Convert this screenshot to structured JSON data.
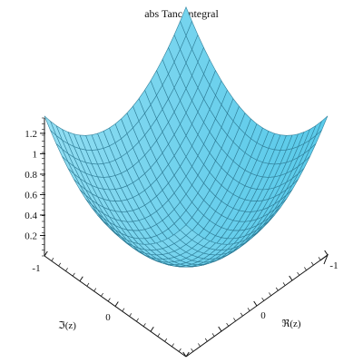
{
  "chart_data": {
    "type": "surface",
    "title": "abs Tanc integral",
    "x": {
      "label": "ℜ(z)",
      "range": [
        -1,
        1
      ],
      "ticks": [
        -1,
        0
      ]
    },
    "y": {
      "label": "ℑ(z)",
      "range": [
        -1,
        1
      ],
      "ticks": [
        -1,
        0
      ]
    },
    "z": {
      "ticks": [
        0.2,
        0.4,
        0.6,
        0.8,
        1,
        1.2
      ],
      "range": [
        0,
        1.35
      ]
    },
    "corner_values": {
      "Re=-1,Im=-1": 1.32,
      "Re=1,Im=-1": 1.32,
      "Re=-1,Im=1": 1.32,
      "Re=1,Im=1": 1.32,
      "Re=0,Im=0": 0
    },
    "mesh": {
      "rows": 24,
      "cols": 24
    },
    "colors": {
      "surface": "#4ec6e8",
      "mesh": "#133b4e",
      "axis": "#111111"
    }
  }
}
